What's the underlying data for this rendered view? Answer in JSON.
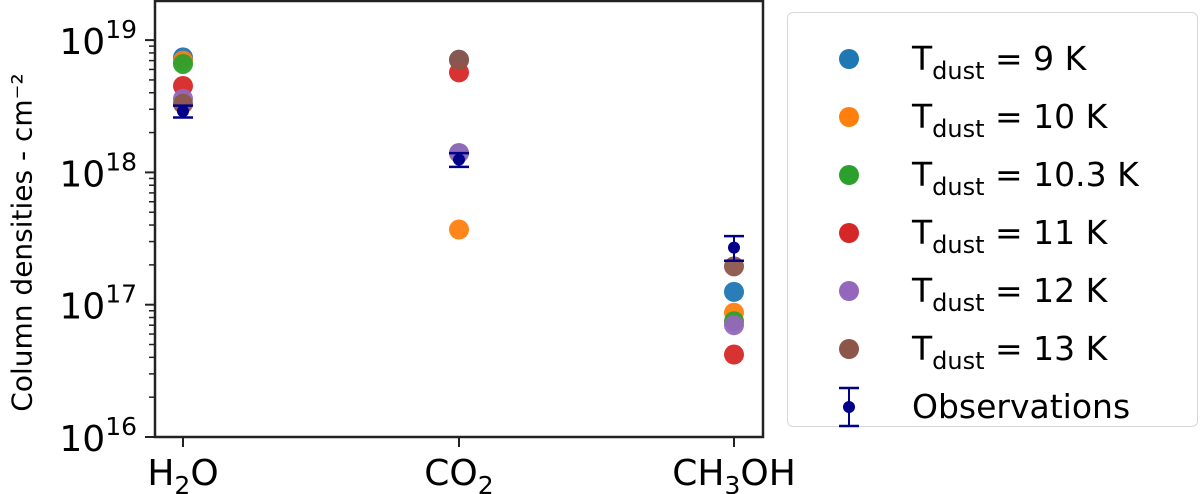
{
  "chart_data": {
    "type": "scatter",
    "title": "",
    "xlabel": "",
    "ylabel": "Column densities - cm⁻²",
    "yscale": "log",
    "ylim": [
      1e+16,
      1.3e+19
    ],
    "yticks": [
      {
        "value": 1e+16,
        "label_base": "10",
        "label_exp": "16"
      },
      {
        "value": 1e+17,
        "label_base": "10",
        "label_exp": "17"
      },
      {
        "value": 1e+18,
        "label_base": "10",
        "label_exp": "18"
      },
      {
        "value": 1e+19,
        "label_base": "10",
        "label_exp": "19"
      }
    ],
    "categories": [
      "H2O",
      "CO2",
      "CH3OH"
    ],
    "category_labels": [
      {
        "parts": [
          [
            "H",
            ""
          ],
          [
            "2",
            "sub"
          ],
          [
            "O",
            ""
          ]
        ]
      },
      {
        "parts": [
          [
            "CO",
            ""
          ],
          [
            "2",
            "sub"
          ]
        ]
      },
      {
        "parts": [
          [
            "CH",
            ""
          ],
          [
            "3",
            "sub"
          ],
          [
            "OH",
            ""
          ]
        ]
      }
    ],
    "grid": false,
    "legend_position": "outside right",
    "series": [
      {
        "name": "T_dust = 9 K",
        "label_main": "T",
        "label_sub": "dust",
        "label_rest": " = 9 K",
        "color": "#1f77b4",
        "values": [
          7.4e+18,
          7.1e+18,
          1.25e+17
        ]
      },
      {
        "name": "T_dust = 10 K",
        "label_main": "T",
        "label_sub": "dust",
        "label_rest": " = 10 K",
        "color": "#ff7f0e",
        "values": [
          7e+18,
          3.7e+17,
          8.7e+16
        ]
      },
      {
        "name": "T_dust = 10.3 K",
        "label_main": "T",
        "label_sub": "dust",
        "label_rest": " = 10.3 K",
        "color": "#2ca02c",
        "values": [
          6.6e+18,
          1.4e+18,
          7.5e+16
        ]
      },
      {
        "name": "T_dust = 11 K",
        "label_main": "T",
        "label_sub": "dust",
        "label_rest": " = 11 K",
        "color": "#d62728",
        "values": [
          4.5e+18,
          5.7e+18,
          4.2e+16
        ]
      },
      {
        "name": "T_dust = 12 K",
        "label_main": "T",
        "label_sub": "dust",
        "label_rest": " = 12 K",
        "color": "#9467bd",
        "values": [
          3.6e+18,
          1.4e+18,
          7e+16
        ]
      },
      {
        "name": "T_dust = 13 K",
        "label_main": "T",
        "label_sub": "dust",
        "label_rest": " = 13 K",
        "color": "#8c564b",
        "values": [
          3.3e+18,
          7.1e+18,
          1.95e+17
        ]
      }
    ],
    "observations": {
      "name": "Observations",
      "color": "#00008b",
      "values": [
        2.9e+18,
        1.25e+18,
        2.7e+17
      ],
      "err_low": [
        2.6e+18,
        1.1e+18,
        2.15e+17
      ],
      "err_high": [
        3.2e+18,
        1.4e+18,
        3.3e+17
      ]
    }
  }
}
